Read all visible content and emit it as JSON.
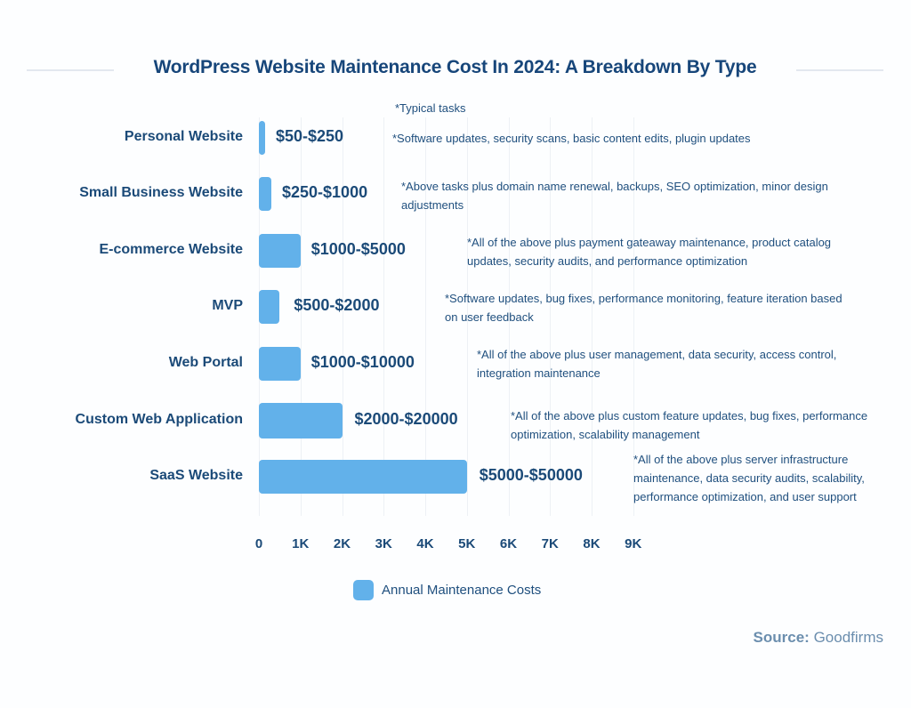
{
  "header": {
    "title": "WordPress Website Maintenance Cost In 2024: A Breakdown By Type"
  },
  "typical_tasks_label": "*Typical tasks",
  "rows": [
    {
      "category": "Personal Website",
      "range": "$50-$250",
      "value": 50,
      "note": "*Software updates, security scans, basic content edits, plugin updates"
    },
    {
      "category": "Small Business Website",
      "range": "$250-$1000",
      "value": 250,
      "note": "*Above tasks plus domain name renewal, backups, SEO optimization, minor design adjustments"
    },
    {
      "category": "E-commerce Website",
      "range": "$1000-$5000",
      "value": 1000,
      "note": "*All of the above plus payment gateaway maintenance, product catalog updates, security audits, and performance optimization"
    },
    {
      "category": "MVP",
      "range": "$500-$2000",
      "value": 500,
      "note": "*Software updates, bug fixes, performance monitoring, feature iteration based on user feedback"
    },
    {
      "category": "Web Portal",
      "range": "$1000-$10000",
      "value": 1000,
      "note": "*All of the above plus user management, data security, access control, integration maintenance"
    },
    {
      "category": "Custom Web Application",
      "range": "$2000-$20000",
      "value": 2000,
      "note": "*All of the above plus custom feature updates, bug fixes, performance optimization, scalability management"
    },
    {
      "category": "SaaS Website",
      "range": "$5000-$50000",
      "value": 5000,
      "note": "*All of the above plus server infrastructure maintenance, data security audits, scalability, performance optimization, and user support"
    }
  ],
  "axis": {
    "ticks": [
      "0",
      "1K",
      "2K",
      "3K",
      "4K",
      "5K",
      "6K",
      "7K",
      "8K",
      "9K"
    ]
  },
  "legend": {
    "label": "Annual Maintenance Costs",
    "color": "#62b1ea"
  },
  "source": {
    "prefix": "Source:",
    "name": "Goodfirms"
  },
  "colors": {
    "bar": "#62b1ea",
    "text": "#1b4a78",
    "source": "#6b8eae"
  },
  "chart_data": {
    "type": "bar",
    "orientation": "horizontal",
    "title": "WordPress Website Maintenance Cost In 2024: A Breakdown By Type",
    "categories": [
      "Personal Website",
      "Small Business Website",
      "E-commerce Website",
      "MVP",
      "Web Portal",
      "Custom Web Application",
      "SaaS Website"
    ],
    "series": [
      {
        "name": "Annual Maintenance Costs",
        "values": [
          50,
          250,
          1000,
          500,
          1000,
          2000,
          5000
        ]
      }
    ],
    "data_labels": [
      "$50-$250",
      "$250-$1000",
      "$1000-$5000",
      "$500-$2000",
      "$1000-$10000",
      "$2000-$20000",
      "$5000-$50000"
    ],
    "annotations": [
      "*Typical tasks",
      "*Software updates, security scans, basic content edits, plugin updates",
      "*Above tasks plus domain name renewal, backups, SEO optimization, minor design adjustments",
      "*All of the above plus payment gateaway maintenance, product catalog updates, security audits, and performance optimization",
      "*Software updates, bug fixes, performance monitoring, feature iteration based on user feedback",
      "*All of the above plus user management, data security, access control, integration maintenance",
      "*All of the above plus custom feature updates, bug fixes, performance optimization, scalability management",
      "*All of the above plus server infrastructure maintenance, data security audits, scalability, performance optimization, and user support"
    ],
    "xlabel": "",
    "ylabel": "",
    "xticks": [
      "0",
      "1K",
      "2K",
      "3K",
      "4K",
      "5K",
      "6K",
      "7K",
      "8K",
      "9K"
    ],
    "xlim": [
      0,
      9000
    ],
    "grid": true,
    "legend_position": "bottom",
    "source": "Source: Goodfirms"
  }
}
